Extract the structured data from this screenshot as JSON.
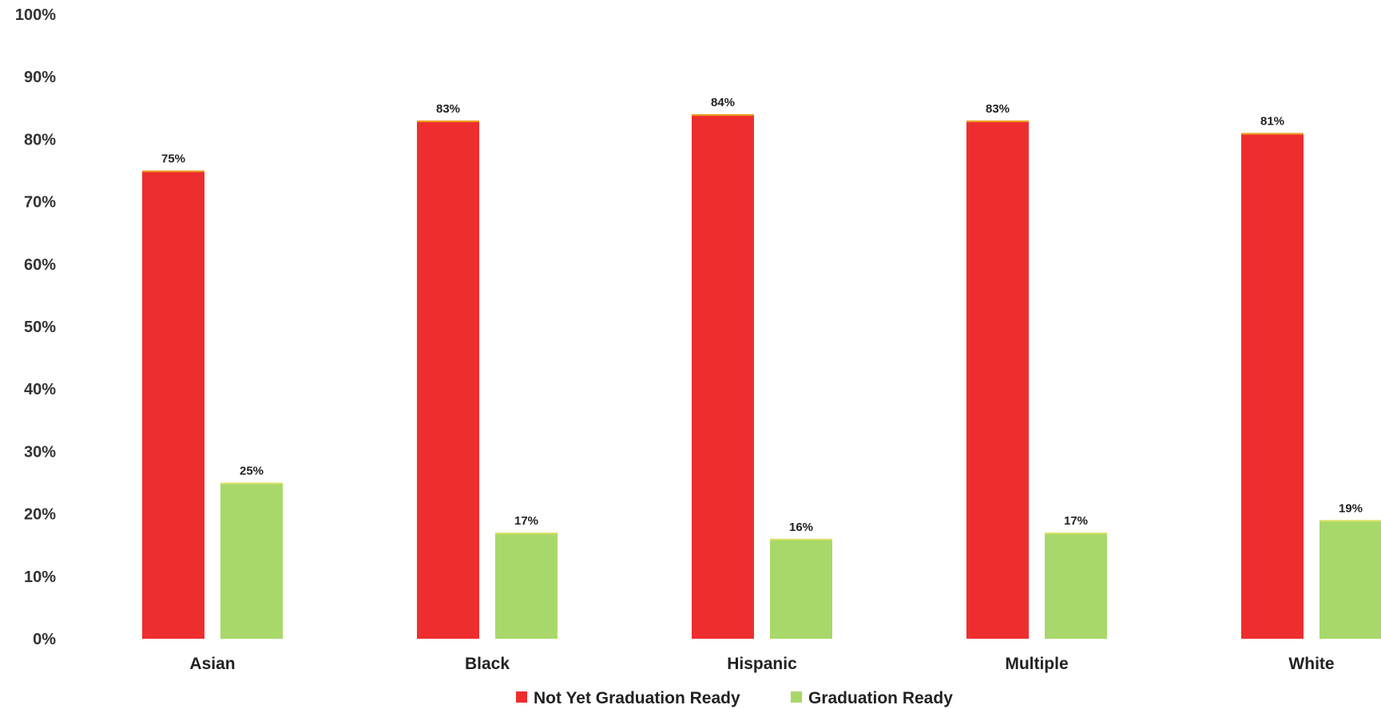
{
  "chart_data": {
    "type": "bar",
    "title": "",
    "xlabel": "",
    "ylabel": "",
    "ylim": [
      0,
      100
    ],
    "yticks": [
      "0%",
      "10%",
      "20%",
      "30%",
      "40%",
      "50%",
      "60%",
      "70%",
      "80%",
      "90%",
      "100%"
    ],
    "categories": [
      "Asian",
      "Black",
      "Hispanic",
      "Multiple",
      "White"
    ],
    "series": [
      {
        "name": "Not Yet Graduation Ready",
        "color": "#ee2e2e",
        "values": [
          75,
          83,
          84,
          83,
          81
        ],
        "labels": [
          "75%",
          "83%",
          "84%",
          "83%",
          "81%"
        ]
      },
      {
        "name": "Graduation Ready",
        "color": "#a8d86a",
        "values": [
          25,
          17,
          16,
          17,
          19
        ],
        "labels": [
          "25%",
          "17%",
          "16%",
          "17%",
          "19%"
        ]
      }
    ],
    "grid": false,
    "legend": "bottom-center"
  }
}
